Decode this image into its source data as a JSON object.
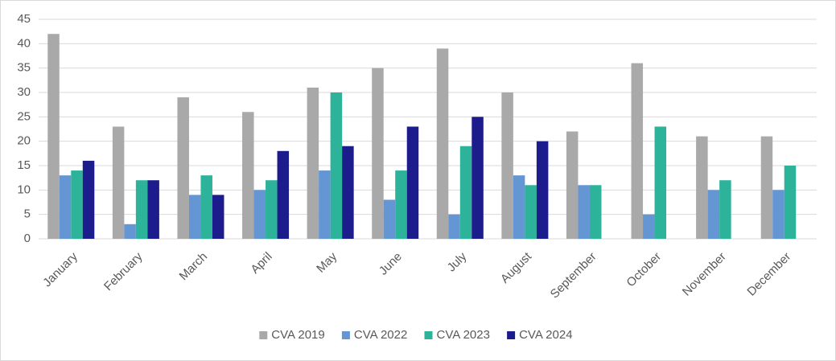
{
  "chart_data": {
    "type": "bar",
    "categories": [
      "January",
      "February",
      "March",
      "April",
      "May",
      "June",
      "July",
      "August",
      "September",
      "October",
      "November",
      "December"
    ],
    "series": [
      {
        "name": "CVA 2019",
        "color": "#a9a9a9",
        "values": [
          42,
          23,
          29,
          26,
          31,
          35,
          39,
          30,
          22,
          36,
          21,
          21
        ]
      },
      {
        "name": "CVA 2022",
        "color": "#6496d4",
        "values": [
          13,
          3,
          9,
          10,
          14,
          8,
          5,
          13,
          11,
          5,
          10,
          10
        ]
      },
      {
        "name": "CVA 2023",
        "color": "#2db39a",
        "values": [
          14,
          12,
          13,
          12,
          30,
          14,
          19,
          11,
          11,
          23,
          12,
          15
        ]
      },
      {
        "name": "CVA 2024",
        "color": "#1c1c8c",
        "values": [
          16,
          12,
          9,
          18,
          19,
          23,
          25,
          20,
          null,
          null,
          null,
          null
        ]
      }
    ],
    "ylim": [
      0,
      45
    ],
    "yticks": [
      0,
      5,
      10,
      15,
      20,
      25,
      30,
      35,
      40,
      45
    ],
    "grid": true,
    "legend": "bottom"
  }
}
